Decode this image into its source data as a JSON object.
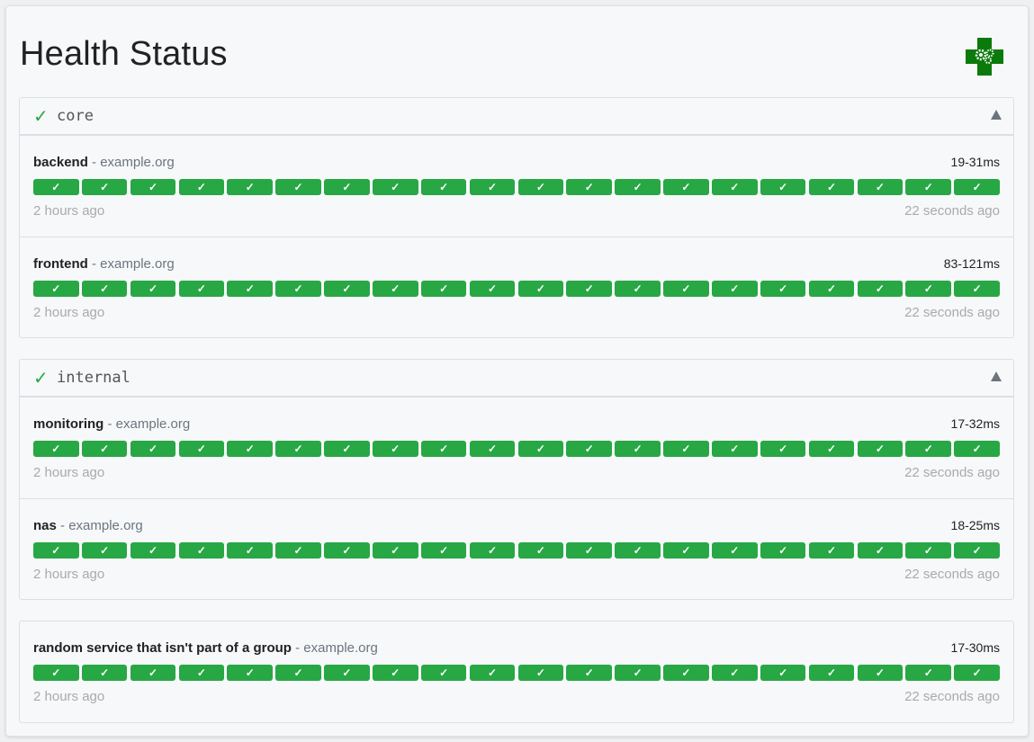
{
  "page": {
    "title": "Health Status",
    "logo": "health-cross-gears-logo"
  },
  "colors": {
    "success": "#28a745",
    "logo": "#0a7a0a"
  },
  "groups": [
    {
      "name": "core",
      "status_icon": "check-icon",
      "collapse_icon": "triangle-up-icon",
      "services": [
        {
          "name": "backend",
          "host": "example.org",
          "response": "19-31ms",
          "oldest": "2 hours ago",
          "newest": "22 seconds ago",
          "results": [
            "✓",
            "✓",
            "✓",
            "✓",
            "✓",
            "✓",
            "✓",
            "✓",
            "✓",
            "✓",
            "✓",
            "✓",
            "✓",
            "✓",
            "✓",
            "✓",
            "✓",
            "✓",
            "✓",
            "✓"
          ]
        },
        {
          "name": "frontend",
          "host": "example.org",
          "response": "83-121ms",
          "oldest": "2 hours ago",
          "newest": "22 seconds ago",
          "results": [
            "✓",
            "✓",
            "✓",
            "✓",
            "✓",
            "✓",
            "✓",
            "✓",
            "✓",
            "✓",
            "✓",
            "✓",
            "✓",
            "✓",
            "✓",
            "✓",
            "✓",
            "✓",
            "✓",
            "✓"
          ]
        }
      ]
    },
    {
      "name": "internal",
      "status_icon": "check-icon",
      "collapse_icon": "triangle-up-icon",
      "services": [
        {
          "name": "monitoring",
          "host": "example.org",
          "response": "17-32ms",
          "oldest": "2 hours ago",
          "newest": "22 seconds ago",
          "results": [
            "✓",
            "✓",
            "✓",
            "✓",
            "✓",
            "✓",
            "✓",
            "✓",
            "✓",
            "✓",
            "✓",
            "✓",
            "✓",
            "✓",
            "✓",
            "✓",
            "✓",
            "✓",
            "✓",
            "✓"
          ]
        },
        {
          "name": "nas",
          "host": "example.org",
          "response": "18-25ms",
          "oldest": "2 hours ago",
          "newest": "22 seconds ago",
          "results": [
            "✓",
            "✓",
            "✓",
            "✓",
            "✓",
            "✓",
            "✓",
            "✓",
            "✓",
            "✓",
            "✓",
            "✓",
            "✓",
            "✓",
            "✓",
            "✓",
            "✓",
            "✓",
            "✓",
            "✓"
          ]
        }
      ]
    },
    {
      "name": "",
      "services": [
        {
          "name": "random service that isn't part of a group",
          "host": "example.org",
          "response": "17-30ms",
          "oldest": "2 hours ago",
          "newest": "22 seconds ago",
          "results": [
            "✓",
            "✓",
            "✓",
            "✓",
            "✓",
            "✓",
            "✓",
            "✓",
            "✓",
            "✓",
            "✓",
            "✓",
            "✓",
            "✓",
            "✓",
            "✓",
            "✓",
            "✓",
            "✓",
            "✓"
          ]
        }
      ]
    }
  ]
}
